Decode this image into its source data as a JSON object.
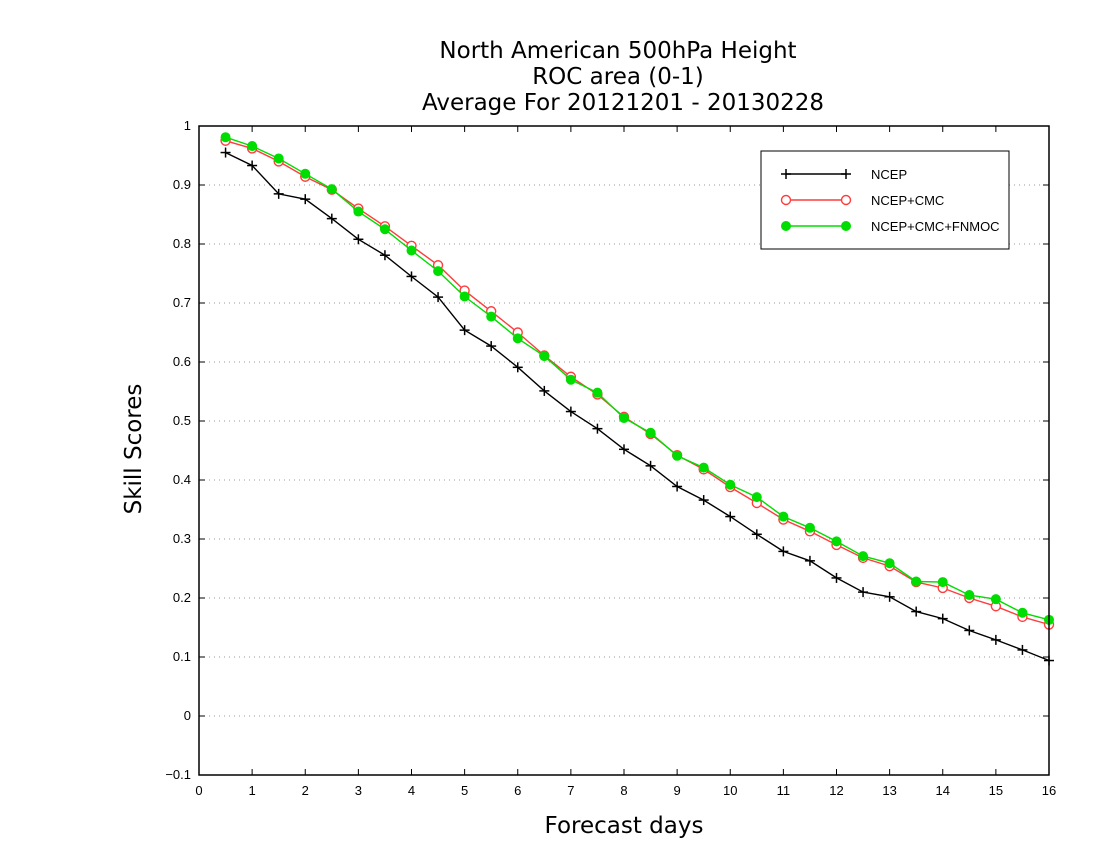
{
  "chart_data": {
    "type": "line",
    "title": [
      "North American 500hPa Height",
      "ROC area (0-1)",
      "Average For 20121201 - 20130228"
    ],
    "xlabel": "Forecast days",
    "ylabel": "Skill Scores",
    "xlim": [
      0,
      16
    ],
    "ylim": [
      -0.1,
      1
    ],
    "xticks": [
      "0",
      "1",
      "2",
      "3",
      "4",
      "5",
      "6",
      "7",
      "8",
      "9",
      "10",
      "11",
      "12",
      "13",
      "14",
      "15",
      "16"
    ],
    "yticks": [
      "−0.1",
      "0",
      "0.1",
      "0.2",
      "0.3",
      "0.4",
      "0.5",
      "0.6",
      "0.7",
      "0.8",
      "0.9",
      "1"
    ],
    "grid": "dotted horizontal",
    "legend_position": "top-right",
    "x": [
      0.5,
      1,
      1.5,
      2,
      2.5,
      3,
      3.5,
      4,
      4.5,
      5,
      5.5,
      6,
      6.5,
      7,
      7.5,
      8,
      8.5,
      9,
      9.5,
      10,
      10.5,
      11,
      11.5,
      12,
      12.5,
      13,
      13.5,
      14,
      14.5,
      15,
      15.5,
      16
    ],
    "series": [
      {
        "name": "NCEP",
        "color": "#000000",
        "marker": "plus",
        "values": [
          0.955,
          0.933,
          0.885,
          0.876,
          0.843,
          0.808,
          0.781,
          0.745,
          0.71,
          0.654,
          0.627,
          0.591,
          0.551,
          0.516,
          0.487,
          0.452,
          0.424,
          0.389,
          0.366,
          0.338,
          0.308,
          0.279,
          0.263,
          0.234,
          0.21,
          0.202,
          0.177,
          0.165,
          0.145,
          0.129,
          0.112,
          0.094
        ]
      },
      {
        "name": "NCEP+CMC",
        "color": "#ff3c3c",
        "marker": "open-circle",
        "values": [
          0.975,
          0.962,
          0.94,
          0.914,
          0.892,
          0.86,
          0.83,
          0.797,
          0.764,
          0.721,
          0.686,
          0.65,
          0.611,
          0.575,
          0.545,
          0.507,
          0.478,
          0.442,
          0.418,
          0.388,
          0.361,
          0.333,
          0.313,
          0.29,
          0.268,
          0.254,
          0.227,
          0.217,
          0.2,
          0.186,
          0.168,
          0.155
        ]
      },
      {
        "name": "NCEP+CMC+FNMOC",
        "color": "#00dd00",
        "marker": "filled-circle",
        "values": [
          0.981,
          0.966,
          0.945,
          0.919,
          0.893,
          0.855,
          0.825,
          0.789,
          0.754,
          0.711,
          0.677,
          0.64,
          0.61,
          0.57,
          0.548,
          0.505,
          0.48,
          0.441,
          0.421,
          0.392,
          0.371,
          0.338,
          0.319,
          0.296,
          0.271,
          0.259,
          0.228,
          0.227,
          0.205,
          0.198,
          0.175,
          0.163
        ]
      }
    ]
  }
}
